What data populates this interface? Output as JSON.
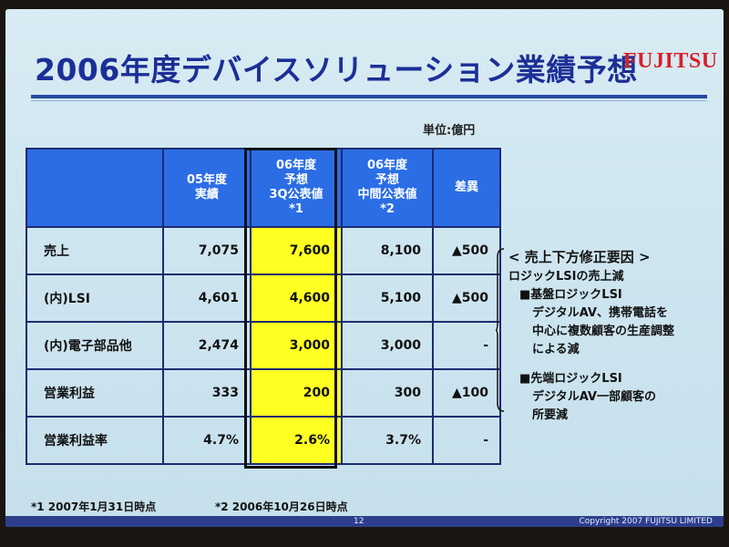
{
  "slide": {
    "title": "2006年度デバイスソリューション業績予想",
    "logo_text": "FUJITSU",
    "unit": "単位:億円"
  },
  "table": {
    "headers": [
      "",
      "05年度\n実績",
      "06年度\n予想\n3Q公表値\n*1",
      "06年度\n予想\n中間公表値\n*2",
      "差異"
    ],
    "rows": [
      {
        "label": "売上",
        "values": [
          "7,075",
          "7,600",
          "8,100",
          "▲500"
        ]
      },
      {
        "label": "(内)LSI",
        "values": [
          "4,601",
          "4,600",
          "5,100",
          "▲500"
        ]
      },
      {
        "label": "(内)電子部品他",
        "values": [
          "2,474",
          "3,000",
          "3,000",
          "-"
        ]
      },
      {
        "label": "営業利益",
        "values": [
          "333",
          "200",
          "300",
          "▲100"
        ]
      },
      {
        "label": "営業利益率",
        "values": [
          "4.7%",
          "2.6%",
          "3.7%",
          "-"
        ]
      }
    ]
  },
  "notes": {
    "heading": "< 売上下方修正要因 >",
    "lines": [
      "ロジックLSIの売上減",
      "■基盤ロジックLSI",
      "デジタルAV、携帯電話を",
      "中心に複数顧客の生産調整",
      "による減",
      "■先端ロジックLSI",
      "デジタルAV一部顧客の",
      "所要減"
    ]
  },
  "footnotes": {
    "note1": "*1  2007年1月31日時点",
    "note2": "*2  2006年10月26日時点"
  },
  "footer": {
    "page": "12",
    "copyright": "Copyright 2007 FUJITSU LIMITED"
  }
}
